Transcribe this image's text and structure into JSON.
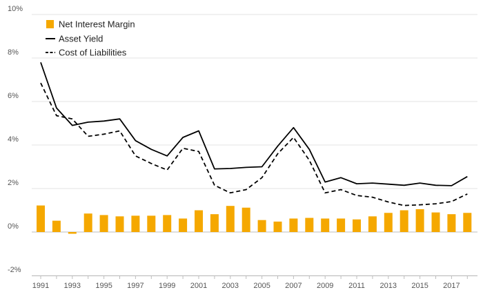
{
  "chart_data": {
    "type": "bar",
    "title": "",
    "xlabel": "",
    "ylabel": "",
    "ylim": [
      -2,
      10
    ],
    "y_ticks": [
      "10%",
      "8%",
      "6%",
      "4%",
      "2%",
      "0%",
      "-2%"
    ],
    "y_tick_values": [
      10,
      8,
      6,
      4,
      2,
      0,
      -2
    ],
    "x_tick_labels": [
      "1991",
      "1993",
      "1995",
      "1997",
      "1999",
      "2001",
      "2003",
      "2005",
      "2007",
      "2009",
      "2011",
      "2013",
      "2015",
      "2017"
    ],
    "x": [
      1991,
      1992,
      1993,
      1994,
      1995,
      1996,
      1997,
      1998,
      1999,
      2000,
      2001,
      2002,
      2003,
      2004,
      2005,
      2006,
      2007,
      2008,
      2009,
      2010,
      2011,
      2012,
      2013,
      2014,
      2015,
      2016,
      2017,
      2018
    ],
    "grid": true,
    "legend_position": "top-left",
    "series": [
      {
        "name": "Net Interest Margin",
        "kind": "bar",
        "color": "#f5a800",
        "values": [
          1.22,
          0.52,
          -0.08,
          0.85,
          0.78,
          0.72,
          0.75,
          0.75,
          0.78,
          0.62,
          1.0,
          0.82,
          1.2,
          1.12,
          0.55,
          0.48,
          0.62,
          0.65,
          0.62,
          0.62,
          0.58,
          0.72,
          0.88,
          1.0,
          1.05,
          0.9,
          0.82,
          0.88
        ]
      },
      {
        "name": "Asset Yield",
        "kind": "line",
        "color": "#000000",
        "dash": "solid",
        "values": [
          7.8,
          5.7,
          4.9,
          5.05,
          5.1,
          5.2,
          4.2,
          3.8,
          3.5,
          4.35,
          4.65,
          2.9,
          2.92,
          2.97,
          3.0,
          3.95,
          4.8,
          3.8,
          2.3,
          2.5,
          2.22,
          2.25,
          2.2,
          2.15,
          2.25,
          2.15,
          2.13,
          2.55
        ]
      },
      {
        "name": "Cost of Liabilities",
        "kind": "line",
        "color": "#000000",
        "dash": "dashed",
        "values": [
          6.85,
          5.35,
          5.2,
          4.4,
          4.5,
          4.65,
          3.5,
          3.15,
          2.85,
          3.85,
          3.7,
          2.15,
          1.8,
          1.95,
          2.5,
          3.6,
          4.35,
          3.3,
          1.8,
          1.95,
          1.68,
          1.6,
          1.38,
          1.22,
          1.25,
          1.3,
          1.4,
          1.75
        ]
      }
    ]
  }
}
